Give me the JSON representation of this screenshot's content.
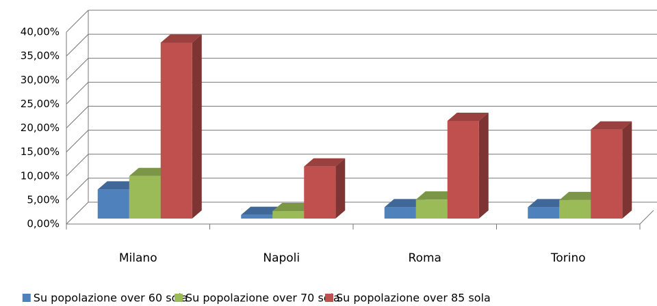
{
  "chart_data": {
    "type": "bar3d",
    "categories": [
      "Milano",
      "Napoli",
      "Roma",
      "Torino"
    ],
    "series": [
      {
        "name": "Su popolazione over 60 sola",
        "color": "#4f81bd",
        "values": [
          7.2,
          1.9,
          3.5,
          3.5
        ]
      },
      {
        "name": "Su popolazione over 70 sola",
        "color": "#9bbb59",
        "values": [
          10,
          2.7,
          5.1,
          5
        ]
      },
      {
        "name": "Su popolazione over 85 sola",
        "color": "#c0504d",
        "values": [
          37.8,
          12,
          21.5,
          19.7
        ]
      }
    ],
    "ylim": [
      0,
      40
    ],
    "yticks": [
      {
        "value": 0,
        "label": "0,00%"
      },
      {
        "value": 5,
        "label": "5,00%"
      },
      {
        "value": 10,
        "label": "10,00%"
      },
      {
        "value": 15,
        "label": "15,00%"
      },
      {
        "value": 20,
        "label": "20,00%"
      },
      {
        "value": 25,
        "label": "25,00%"
      },
      {
        "value": 30,
        "label": "30,00%"
      },
      {
        "value": 35,
        "label": "35,00%"
      },
      {
        "value": 40,
        "label": "40,00%"
      }
    ],
    "grid": true,
    "legend": "bottom"
  }
}
